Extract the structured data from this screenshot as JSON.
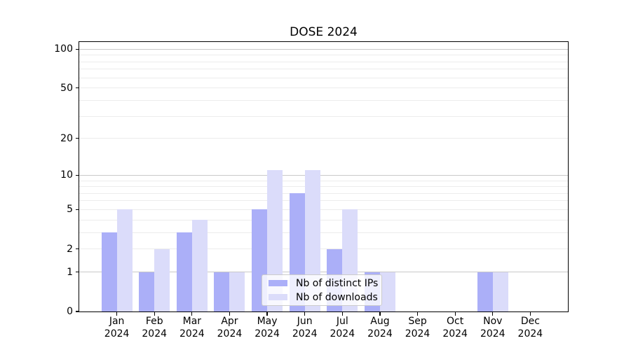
{
  "title": "DOSE 2024",
  "chart_data": {
    "type": "bar",
    "title": "DOSE 2024",
    "categories": [
      "Jan",
      "Feb",
      "Mar",
      "Apr",
      "May",
      "Jun",
      "Jul",
      "Aug",
      "Sep",
      "Oct",
      "Nov",
      "Dec"
    ],
    "category_year": "2024",
    "series": [
      {
        "name": "Nb of distinct IPs",
        "color": "#abaff8",
        "values": [
          3,
          1,
          3,
          1,
          5,
          7,
          2,
          1,
          0,
          0,
          1,
          0
        ]
      },
      {
        "name": "Nb of downloads",
        "color": "#dbdcfa",
        "values": [
          5,
          2,
          4,
          1,
          11,
          11,
          5,
          1,
          0,
          0,
          1,
          0
        ]
      }
    ],
    "xlabel": "",
    "ylabel": "",
    "y_axis": {
      "scale": "log1p",
      "ticks": [
        0,
        1,
        2,
        5,
        10,
        20,
        50,
        100
      ],
      "major_grid_values": [
        1,
        10,
        100
      ],
      "minor_grid_values": [
        2,
        3,
        4,
        5,
        6,
        7,
        8,
        9,
        20,
        30,
        40,
        50,
        60,
        70,
        80,
        90
      ],
      "ylim": [
        0,
        113
      ]
    },
    "grid": "on",
    "legend_position": "lower center",
    "colors": {
      "grid_major": "#c8c8c8",
      "grid_minor": "#ececec",
      "spine": "#000000",
      "background": "#ffffff"
    }
  }
}
